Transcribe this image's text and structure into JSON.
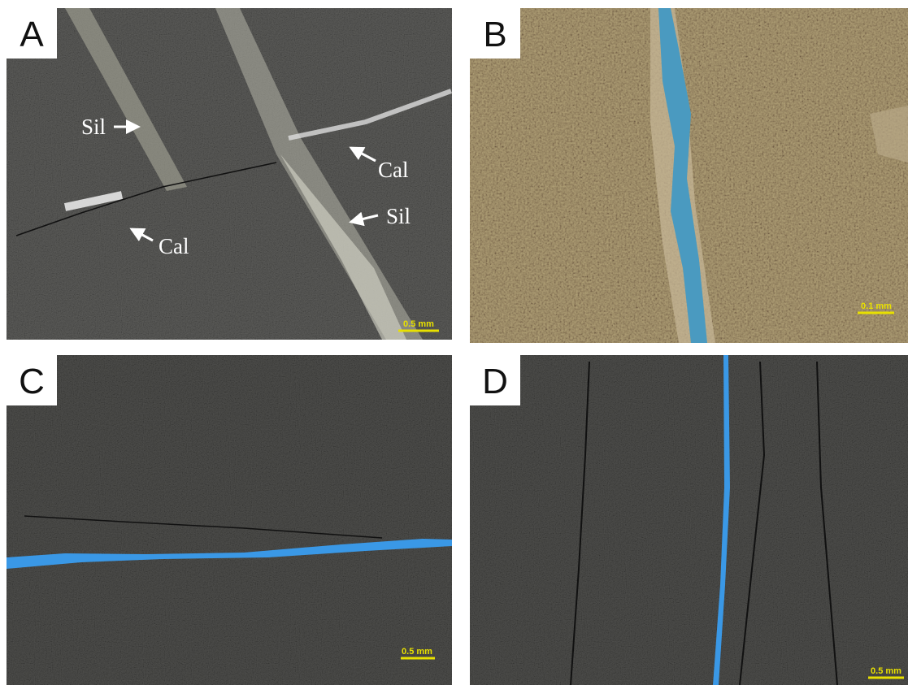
{
  "panels": [
    {
      "label": "A",
      "scale_bar": "0.5 mm",
      "annotations": [
        "Sil",
        "Cal",
        "Sil",
        "Cal"
      ]
    },
    {
      "label": "B",
      "scale_bar": "0.1 mm"
    },
    {
      "label": "C",
      "scale_bar": "0.5 mm"
    },
    {
      "label": "D",
      "scale_bar": "0.5 mm"
    }
  ]
}
